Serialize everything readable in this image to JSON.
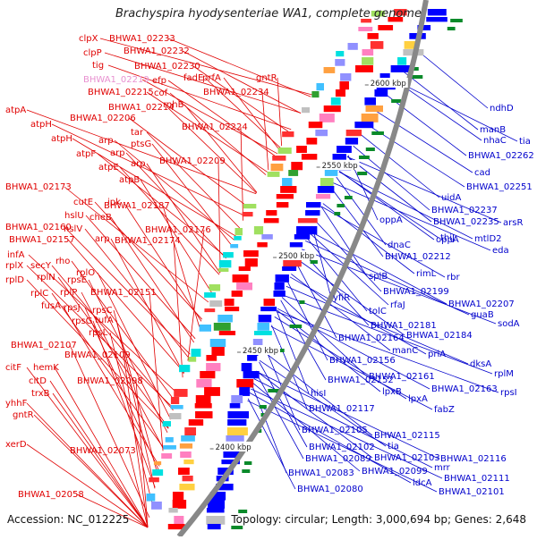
{
  "title": "Brachyspira hyodysenteriae WA1, complete genome",
  "footer": {
    "accession": "Accession: NC_012225",
    "topology": "Topology: circular; Length: 3,000,694 bp; Genes: 2,648"
  },
  "ticks": [
    "2600 kbp",
    "2550 kbp",
    "2500 kbp",
    "2450 kbp",
    "2400 kbp"
  ],
  "colors": {
    "forward_label": "#e00000",
    "reverse_label": "#0000cc",
    "highlight_label": "#e890d0",
    "backbone": "#888888",
    "forward_feature": "#ff0000",
    "reverse_feature": "#0000ff"
  },
  "left_labels": [
    {
      "text": "clpX",
      "color": "red"
    },
    {
      "text": "BHWA1_02233",
      "color": "red"
    },
    {
      "text": "clpP",
      "color": "red"
    },
    {
      "text": "BHWA1_02232",
      "color": "red"
    },
    {
      "text": "tig",
      "color": "red"
    },
    {
      "text": "BHWA1_02230",
      "color": "red"
    },
    {
      "text": "gntR",
      "color": "red"
    },
    {
      "text": "fadE",
      "color": "red"
    },
    {
      "text": "prfA",
      "color": "red"
    },
    {
      "text": "BHWA1_02219",
      "color": "pink"
    },
    {
      "text": "efp",
      "color": "red"
    },
    {
      "text": "BHWA1_02234",
      "color": "red"
    },
    {
      "text": "BHWA1_02215",
      "color": "red"
    },
    {
      "text": "cof",
      "color": "red"
    },
    {
      "text": "atpA",
      "color": "red"
    },
    {
      "text": "BHWA1_02214",
      "color": "red"
    },
    {
      "text": "rnhB",
      "color": "red"
    },
    {
      "text": "BHWA1_02206",
      "color": "red"
    },
    {
      "text": "atpH",
      "color": "red"
    },
    {
      "text": "BHWA1_02224",
      "color": "red"
    },
    {
      "text": "tar",
      "color": "red"
    },
    {
      "text": "atpH",
      "color": "red"
    },
    {
      "text": "arp",
      "color": "red"
    },
    {
      "text": "ptsG",
      "color": "red"
    },
    {
      "text": "atpF",
      "color": "red"
    },
    {
      "text": "arp",
      "color": "red"
    },
    {
      "text": "atpE",
      "color": "red"
    },
    {
      "text": "arp",
      "color": "red"
    },
    {
      "text": "BHWA1_02209",
      "color": "red"
    },
    {
      "text": "atpB",
      "color": "red"
    },
    {
      "text": "BHWA1_02173",
      "color": "red"
    },
    {
      "text": "cutE",
      "color": "red"
    },
    {
      "text": "ipk",
      "color": "red"
    },
    {
      "text": "BHWA1_02187",
      "color": "red"
    },
    {
      "text": "hslU",
      "color": "red"
    },
    {
      "text": "cheB",
      "color": "red"
    },
    {
      "text": "BHWA1_02160",
      "color": "red"
    },
    {
      "text": "hslV",
      "color": "red"
    },
    {
      "text": "BHWA1_02176",
      "color": "red"
    },
    {
      "text": "BHWA1_02157",
      "color": "red"
    },
    {
      "text": "arp",
      "color": "red"
    },
    {
      "text": "BHWA1_02174",
      "color": "red"
    },
    {
      "text": "infA",
      "color": "red"
    },
    {
      "text": "rho",
      "color": "red"
    },
    {
      "text": "rplX",
      "color": "red"
    },
    {
      "text": "secY",
      "color": "red"
    },
    {
      "text": "rplO",
      "color": "red"
    },
    {
      "text": "rplD",
      "color": "red"
    },
    {
      "text": "rplN",
      "color": "red"
    },
    {
      "text": "rpsE",
      "color": "red"
    },
    {
      "text": "rplC",
      "color": "red"
    },
    {
      "text": "rplP",
      "color": "red"
    },
    {
      "text": "BHWA1_02151",
      "color": "red"
    },
    {
      "text": "fusA",
      "color": "red"
    },
    {
      "text": "rpsJ",
      "color": "red"
    },
    {
      "text": "rpsC",
      "color": "red"
    },
    {
      "text": "rpsG",
      "color": "red"
    },
    {
      "text": "tufA",
      "color": "red"
    },
    {
      "text": "rpsL",
      "color": "red"
    },
    {
      "text": "BHWA1_02107",
      "color": "red"
    },
    {
      "text": "BHWA1_02109",
      "color": "red"
    },
    {
      "text": "citF",
      "color": "red"
    },
    {
      "text": "hemK",
      "color": "red"
    },
    {
      "text": "citD",
      "color": "red"
    },
    {
      "text": "BHWA1_02098",
      "color": "red"
    },
    {
      "text": "trxB",
      "color": "red"
    },
    {
      "text": "yhhF",
      "color": "red"
    },
    {
      "text": "gntR",
      "color": "red"
    },
    {
      "text": "xerD",
      "color": "red"
    },
    {
      "text": "BHWA1_02073",
      "color": "red"
    },
    {
      "text": "BHWA1_02058",
      "color": "red"
    }
  ],
  "right_labels": [
    "ndhD",
    "manB",
    "nhaC",
    "tia",
    "BHWA1_02262",
    "cad",
    "BHWA1_02251",
    "uidA",
    "BHWA1_02237",
    "oppA",
    "BHWA1_02235",
    "arsR",
    "thiJ",
    "mtlD2",
    "eda",
    "dnaC",
    "oppA",
    "BHWA1_02212",
    "splB",
    "rimL",
    "rbr",
    "BHWA1_02199",
    "yfiR",
    "rfaJ",
    "BHWA1_02207",
    "tolC",
    "guaB",
    "sodA",
    "BHWA1_02181",
    "BHWA1_02164",
    "BHWA1_02184",
    "manC",
    "priA",
    "dksA",
    "BHWA1_02156",
    "rplM",
    "BHWA1_02161",
    "BHWA1_02152",
    "BHWA1_02163",
    "rpsI",
    "lpxB",
    "lpxA",
    "hisI",
    "fabZ",
    "BHWA1_02117",
    "BHWA1_02105",
    "BHWA1_02115",
    "BHWA1_02102",
    "tia",
    "BHWA1_02089",
    "BHWA1_02103",
    "BHWA1_02116",
    "BHWA1_02083",
    "BHWA1_02099",
    "mrr",
    "BHWA1_02111",
    "ldcA",
    "BHWA1_02080",
    "BHWA1_02101"
  ]
}
